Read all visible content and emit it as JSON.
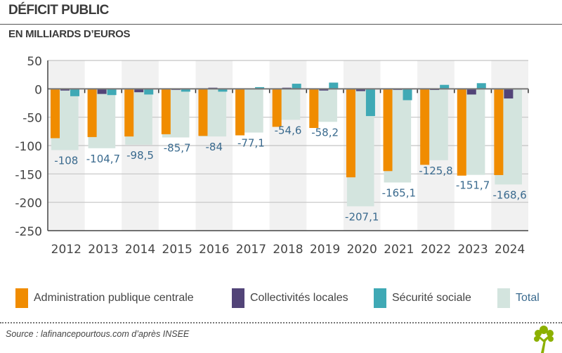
{
  "header": {
    "title": "DÉFICIT PUBLIC",
    "subtitle": "EN MILLIARDS D’EUROS"
  },
  "legend": [
    {
      "label": "Administration publique centrale",
      "color": "#f08c00",
      "series": "apuc"
    },
    {
      "label": "Collectivités locales",
      "color": "#524478",
      "series": "local"
    },
    {
      "label": "Sécurité sociale",
      "color": "#3fa9b5",
      "series": "ss"
    },
    {
      "label": "Total",
      "color": "#d3e4de",
      "text_color": "#3a6a8e",
      "series": "total"
    }
  ],
  "footer": {
    "source": "Source : lafinancepourtous.com d’après INSEE",
    "logo_icon": "tree-icon",
    "logo_color": "#8cb000"
  },
  "chart_data": {
    "type": "bar",
    "title": "DÉFICIT PUBLIC",
    "subtitle": "EN MILLIARDS D’EUROS",
    "xlabel": "",
    "ylabel": "",
    "ylim": [
      -250,
      50
    ],
    "yticks": [
      50,
      0,
      -50,
      -100,
      -150,
      -200,
      -250
    ],
    "ytick_labels": [
      "50",
      "0",
      "-50",
      "-100",
      "-150",
      "-200",
      "-250"
    ],
    "grid": true,
    "legend_position": "bottom",
    "categories": [
      "2012",
      "2013",
      "2014",
      "2015",
      "2016",
      "2017",
      "2018",
      "2019",
      "2020",
      "2021",
      "2022",
      "2023",
      "2024"
    ],
    "series": [
      {
        "name": "Administration publique centrale",
        "key": "apuc",
        "color": "#f08c00",
        "values": [
          -87,
          -85,
          -84,
          -80,
          -83,
          -82,
          -67,
          -69,
          -156,
          -145,
          -134,
          -153,
          -152
        ]
      },
      {
        "name": "Collectivités locales",
        "key": "local",
        "color": "#524478",
        "values": [
          -3,
          -9,
          -6,
          -1,
          2,
          1,
          2,
          -3,
          -4,
          -1,
          -2,
          -10,
          -17
        ]
      },
      {
        "name": "Sécurité sociale",
        "key": "ss",
        "color": "#3fa9b5",
        "values": [
          -13,
          -11,
          -10,
          -5,
          -5,
          3,
          9,
          11,
          -48,
          -20,
          7,
          10,
          1
        ]
      },
      {
        "name": "Total",
        "key": "total",
        "color": "#d3e4de",
        "values": [
          -108,
          -104.7,
          -98.5,
          -85.7,
          -84,
          -77.1,
          -54.6,
          -58.2,
          -207.1,
          -165.1,
          -125.8,
          -151.7,
          -168.6
        ]
      }
    ],
    "data_labels": [
      "-108",
      "-104,7",
      "-98,5",
      "-85,7",
      "-84",
      "-77,1",
      "-54,6",
      "-58,2",
      "-207,1",
      "-165,1",
      "-125,8",
      "-151,7",
      "-168,6"
    ],
    "data_label_color": "#3a6a8e"
  }
}
